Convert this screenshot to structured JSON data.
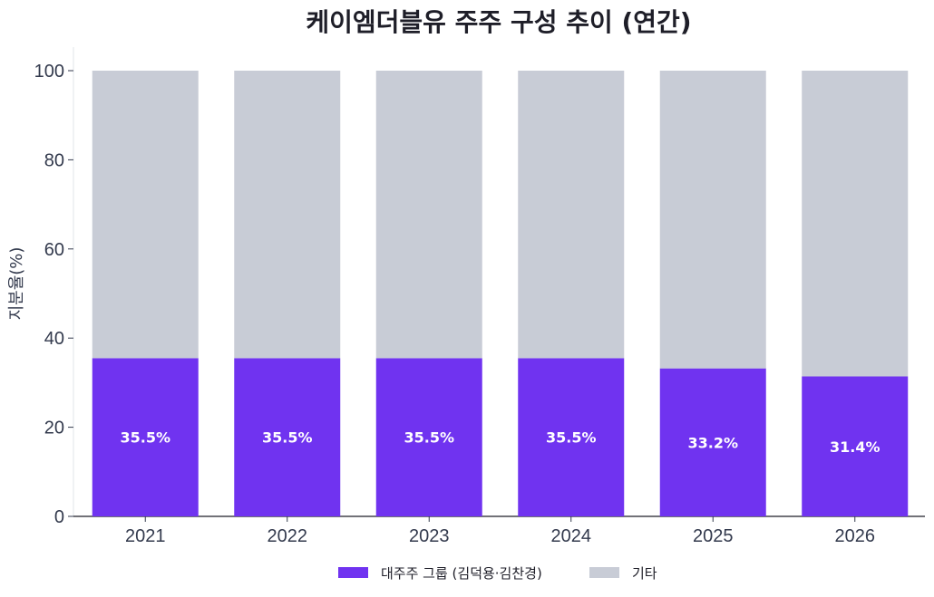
{
  "chart_data": {
    "type": "bar",
    "stacked": true,
    "title": "케이엠더블유 주주 구성 추이 (연간)",
    "xlabel": "",
    "ylabel": "지분율(%)",
    "ylim": [
      0,
      100
    ],
    "yticks": [
      0,
      20,
      40,
      60,
      80,
      100
    ],
    "categories": [
      "2021",
      "2022",
      "2023",
      "2024",
      "2025",
      "2026"
    ],
    "series": [
      {
        "name": "대주주 그룹 (김덕용·김찬경)",
        "values": [
          35.5,
          35.5,
          35.5,
          35.5,
          33.2,
          31.4
        ],
        "color": "#7033f0",
        "labels": [
          "35.5%",
          "35.5%",
          "35.5%",
          "35.5%",
          "33.2%",
          "31.4%"
        ]
      },
      {
        "name": "기타",
        "values": [
          64.5,
          64.5,
          64.5,
          64.5,
          66.8,
          68.6
        ],
        "color": "#c8ccd6"
      }
    ],
    "grid": false,
    "legend": "bottom-center"
  }
}
